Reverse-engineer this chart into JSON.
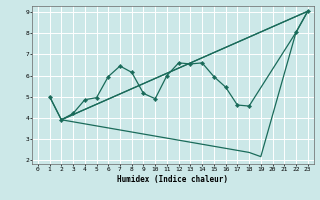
{
  "xlabel": "Humidex (Indice chaleur)",
  "xlim": [
    -0.5,
    23.5
  ],
  "ylim": [
    1.8,
    9.3
  ],
  "yticks": [
    2,
    3,
    4,
    5,
    6,
    7,
    8,
    9
  ],
  "xticks": [
    0,
    1,
    2,
    3,
    4,
    5,
    6,
    7,
    8,
    9,
    10,
    11,
    12,
    13,
    14,
    15,
    16,
    17,
    18,
    19,
    20,
    21,
    22,
    23
  ],
  "bg_color": "#cce8e8",
  "grid_color": "#ffffff",
  "line_color": "#1a6b5a",
  "line1_x": [
    1,
    2,
    3,
    4,
    5,
    6,
    7,
    8,
    9,
    10,
    11,
    12,
    13,
    14,
    15,
    16,
    17,
    18,
    22,
    23
  ],
  "line1_y": [
    5.0,
    3.9,
    4.2,
    4.85,
    4.95,
    5.95,
    6.45,
    6.15,
    5.15,
    4.9,
    6.0,
    6.6,
    6.55,
    6.6,
    5.95,
    5.45,
    4.6,
    4.55,
    8.05,
    9.05
  ],
  "line2_x": [
    1,
    2,
    23
  ],
  "line2_y": [
    5.0,
    3.9,
    9.05
  ],
  "line3_x": [
    2,
    23
  ],
  "line3_y": [
    3.9,
    9.05
  ],
  "line4_x": [
    2,
    18,
    19,
    22,
    23
  ],
  "line4_y": [
    3.9,
    2.35,
    2.15,
    8.05,
    9.05
  ]
}
